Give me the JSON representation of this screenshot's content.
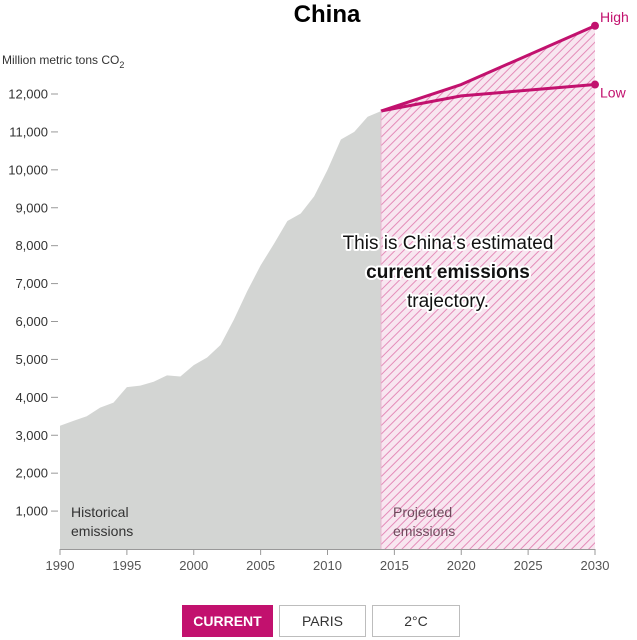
{
  "chart_data": {
    "type": "area",
    "title": "China",
    "ylabel": "Million metric tons CO",
    "ylabel_sub": "2",
    "ylim": [
      0,
      12500
    ],
    "xlim": [
      1990,
      2030
    ],
    "y_ticks": [
      1000,
      2000,
      3000,
      4000,
      5000,
      6000,
      7000,
      8000,
      9000,
      10000,
      11000,
      12000
    ],
    "y_tick_labels": [
      "1,000",
      "2,000",
      "3,000",
      "4,000",
      "5,000",
      "6,000",
      "7,000",
      "8,000",
      "9,000",
      "10,000",
      "11,000",
      "12,000"
    ],
    "x_ticks": [
      1990,
      1995,
      2000,
      2005,
      2010,
      2015,
      2020,
      2025,
      2030
    ],
    "x_tick_labels": [
      "1990",
      "1995",
      "2000",
      "2005",
      "2010",
      "2015",
      "2020",
      "2025",
      "2030"
    ],
    "historical": {
      "label_line1": "Historical",
      "label_line2": "emissions",
      "color": "#d3d5d3",
      "x": [
        1990,
        1991,
        1992,
        1993,
        1994,
        1995,
        1996,
        1997,
        1998,
        1999,
        2000,
        2001,
        2002,
        2003,
        2004,
        2005,
        2006,
        2007,
        2008,
        2009,
        2010,
        2011,
        2012,
        2013,
        2014
      ],
      "y": [
        3250,
        3380,
        3500,
        3730,
        3860,
        4270,
        4310,
        4410,
        4580,
        4550,
        4850,
        5050,
        5380,
        6050,
        6800,
        7480,
        8050,
        8650,
        8850,
        9300,
        10000,
        10800,
        11000,
        11400,
        11550
      ]
    },
    "projected": {
      "label_line1": "Projected",
      "label_line2": "emissions",
      "color": "#c2116e",
      "series": [
        {
          "name": "High",
          "x": [
            2014,
            2020,
            2030
          ],
          "y": [
            11550,
            12250,
            13800
          ]
        },
        {
          "name": "Low",
          "x": [
            2014,
            2020,
            2030
          ],
          "y": [
            11550,
            11950,
            12250
          ]
        }
      ]
    },
    "annotation": {
      "line1": "This is China’s estimated",
      "line2": "current emissions",
      "line3": "trajectory."
    }
  },
  "controls": {
    "buttons": [
      {
        "label": "CURRENT",
        "active": true
      },
      {
        "label": "PARIS",
        "active": false
      },
      {
        "label": "2°C",
        "active": false
      }
    ]
  }
}
